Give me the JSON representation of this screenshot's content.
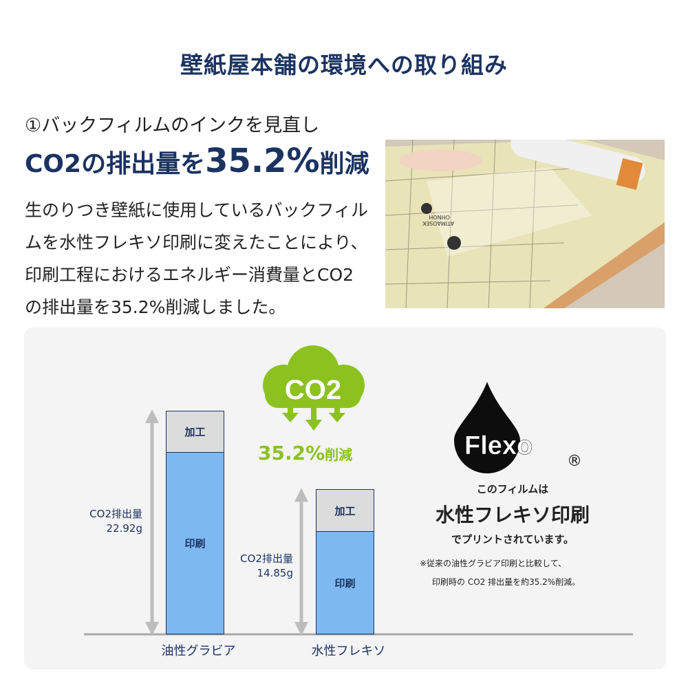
{
  "title": "壁紙屋本舗の環境への取り組み",
  "subtitle": "①バックフィルムのインクを見直し",
  "headline": {
    "prefix": "CO2の排出量を",
    "value": "35.2%",
    "suffix": "削減"
  },
  "body": "生のりつき壁紙に使用しているバックフィルムを水性フレキソ印刷に変えたことにより、印刷工程におけるエネルギー消費量とCO2の排出量を35.2%削減しました。",
  "photo": {
    "print_text": [
      "ATIMAOSEK",
      "OHNOH"
    ]
  },
  "cloud": {
    "label": "CO2",
    "reduction": "35.2%",
    "reduction_suffix": "削減",
    "color": "#8cc21f"
  },
  "chart_data": {
    "type": "bar",
    "stacked": true,
    "unit": "g",
    "categories": [
      "油性グラビア",
      "水性フレキソ"
    ],
    "totals": [
      22.92,
      14.85
    ],
    "total_labels": [
      "CO2排出量\n22.92g",
      "CO2排出量\n14.85g"
    ],
    "series": [
      {
        "name": "印刷",
        "values": [
          18.7,
          10.55
        ],
        "color": "#7db9f0"
      },
      {
        "name": "加工",
        "values": [
          4.2,
          4.3
        ],
        "color": "#dcdcdc"
      }
    ]
  },
  "flexo": {
    "logo": "Flexo",
    "registered": "®",
    "line1": "このフィルムは",
    "line2": "水性フレキソ印刷",
    "line3": "でプリントされています。",
    "note1": "※従来の油性グラビア印刷と比較して、",
    "note2": "印刷時の CO2 排出量を約35.2%削減。"
  }
}
